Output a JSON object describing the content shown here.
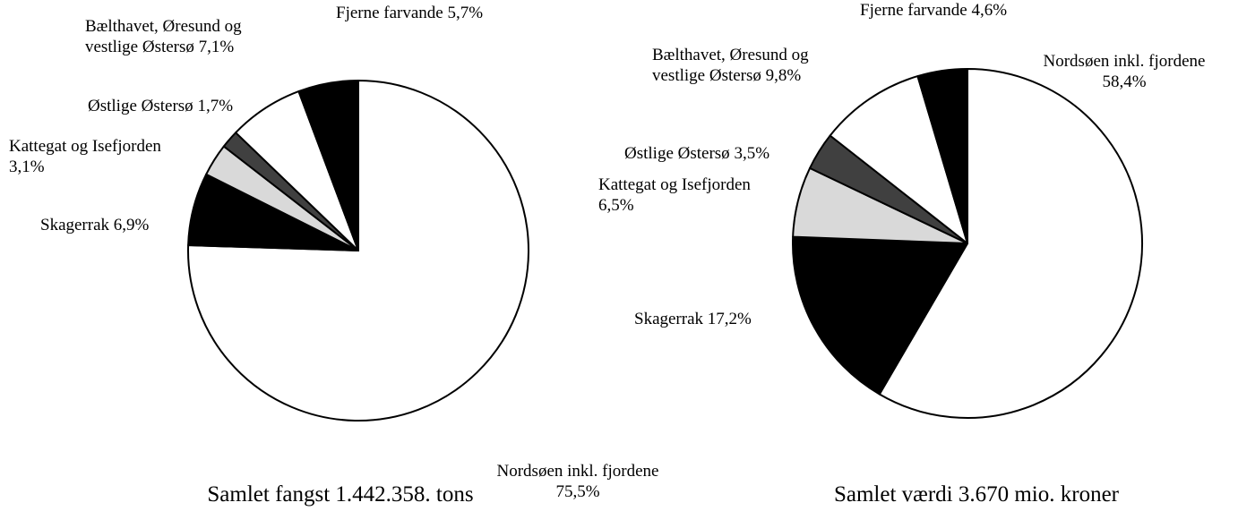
{
  "chart_data": [
    {
      "type": "pie",
      "title": "Samlet fangst 1.442.358. tons",
      "categories": [
        "Nordsøen inkl. fjordene",
        "Skagerrak",
        "Kattegat og Isefjorden",
        "Østlige Østersø",
        "Bælthavet, Øresund og vestlige Østersø",
        "Fjerne farvande"
      ],
      "values": [
        75.5,
        6.9,
        3.1,
        1.7,
        7.1,
        5.7
      ],
      "value_labels": [
        "75,5%",
        "6,9%",
        "3,1%",
        "1,7%",
        "7,1%",
        "5,7%"
      ],
      "colors": [
        "#ffffff",
        "#000000",
        "#d9d9d9",
        "#404040",
        "#ffffff",
        "#000000"
      ]
    },
    {
      "type": "pie",
      "title": "Samlet værdi 3.670 mio. kroner",
      "categories": [
        "Nordsøen inkl. fjordene",
        "Skagerrak",
        "Kattegat og Isefjorden",
        "Østlige Østersø",
        "Bælthavet, Øresund og vestlige Østersø",
        "Fjerne farvande"
      ],
      "values": [
        58.4,
        17.2,
        6.5,
        3.5,
        9.8,
        4.6
      ],
      "value_labels": [
        "58,4%",
        "17,2%",
        "6,5%",
        "3,5%",
        "9,8%",
        "4,6%"
      ],
      "colors": [
        "#ffffff",
        "#000000",
        "#d9d9d9",
        "#404040",
        "#ffffff",
        "#000000"
      ]
    }
  ]
}
